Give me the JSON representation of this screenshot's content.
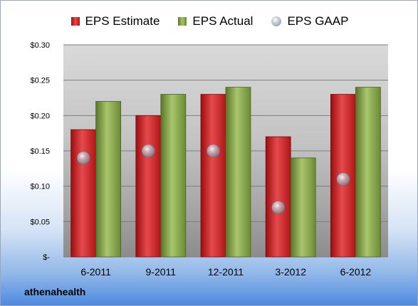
{
  "company": "athenahealth",
  "colors": {
    "estimate": "#c81e21",
    "actual": "#8cad4e",
    "gaap": "#a9b2c2"
  },
  "chart_data": {
    "type": "bar",
    "categories": [
      "6-2011",
      "9-2011",
      "12-2011",
      "3-2012",
      "6-2012"
    ],
    "series": [
      {
        "name": "EPS Estimate",
        "kind": "bar",
        "values": [
          0.18,
          0.2,
          0.23,
          0.17,
          0.23
        ]
      },
      {
        "name": "EPS Actual",
        "kind": "bar",
        "values": [
          0.22,
          0.23,
          0.24,
          0.14,
          0.24
        ]
      },
      {
        "name": "EPS GAAP",
        "kind": "scatter",
        "values": [
          0.14,
          0.15,
          0.15,
          0.07,
          0.11
        ]
      }
    ],
    "yticks": [
      0,
      0.05,
      0.1,
      0.15,
      0.2,
      0.25,
      0.3
    ],
    "ytick_labels": [
      "$-",
      "$0.05",
      "$0.10",
      "$0.15",
      "$0.20",
      "$0.25",
      "$0.30"
    ],
    "ylim": [
      0,
      0.3
    ],
    "grid": true,
    "legend_position": "top"
  }
}
